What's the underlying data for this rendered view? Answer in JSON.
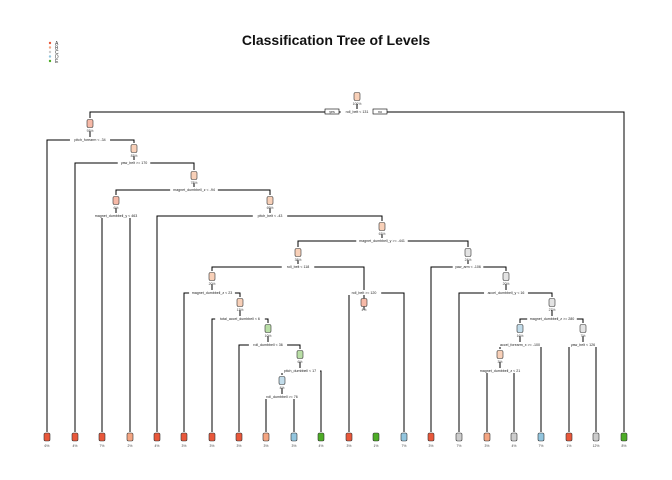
{
  "title": "Classification Tree of Levels",
  "legend": [
    {
      "label": "A",
      "color": "#e8573a"
    },
    {
      "label": "B",
      "color": "#f4a582"
    },
    {
      "label": "C",
      "color": "#cccccc"
    },
    {
      "label": "D",
      "color": "#92c5de"
    },
    {
      "label": "E",
      "color": "#4dac26"
    }
  ],
  "root_button_labels": [
    "yes",
    "no"
  ],
  "splits": [
    {
      "id": "root",
      "text": "roll_belt < 131"
    },
    {
      "id": "n2",
      "text": "pitch_forearm < -34"
    },
    {
      "id": "n4",
      "text": "yaw_belt >= 170"
    },
    {
      "id": "n5",
      "text": "magnet_dumbbell_z < -94"
    },
    {
      "id": "n6",
      "text": "magnet_dumbbell_y < 463"
    },
    {
      "id": "n7",
      "text": "pitch_belt < -43"
    },
    {
      "id": "n8",
      "text": "magnet_dumbbell_y >= -441"
    },
    {
      "id": "n9",
      "text": "roll_belt < 118"
    },
    {
      "id": "n10",
      "text": "yaw_arm < -106"
    },
    {
      "id": "n11",
      "text": "magnet_dumbbell_z < 23"
    },
    {
      "id": "n12",
      "text": "roll_belt >= 120"
    },
    {
      "id": "n13",
      "text": "accel_dumbbell_y < 16"
    },
    {
      "id": "n14",
      "text": "total_accel_dumbbell < 6"
    },
    {
      "id": "n15",
      "text": "magnet_dumbbell_z >= 280"
    },
    {
      "id": "n16",
      "text": "roll_dumbbell < 36"
    },
    {
      "id": "n17",
      "text": "accel_forearm_x >= -100"
    },
    {
      "id": "n18",
      "text": "yaw_belt < 126"
    },
    {
      "id": "n19",
      "text": "pitch_dumbbell < 17"
    },
    {
      "id": "n20",
      "text": "magnet_dumbbell_z < 21"
    },
    {
      "id": "n21",
      "text": "roll_dumbbell >= 76"
    },
    {
      "id": "n22",
      "text": "yaw_belt < 4.2"
    }
  ],
  "internal_pcts": {
    "root": "100%",
    "n2": "93%",
    "n4": "83%",
    "n5": "78%",
    "n6": "6%",
    "n7": "69%",
    "n8": "63%",
    "n9": "38%",
    "n10": "24%",
    "n11": "20%",
    "n12": "4%",
    "n13": "20%",
    "n14": "13%",
    "n15": "27%",
    "n16": "10%",
    "n17": "16%",
    "n18": "7%",
    "n19": "6%",
    "n20": "3%",
    "n21": "4%"
  },
  "leaves": [
    {
      "pct": "6%",
      "class": "A"
    },
    {
      "pct": "4%",
      "class": "A"
    },
    {
      "pct": "7%",
      "class": "A"
    },
    {
      "pct": "2%",
      "class": "B"
    },
    {
      "pct": "4%",
      "class": "A"
    },
    {
      "pct": "3%",
      "class": "A"
    },
    {
      "pct": "3%",
      "class": "A"
    },
    {
      "pct": "3%",
      "class": "A"
    },
    {
      "pct": "3%",
      "class": "B"
    },
    {
      "pct": "3%",
      "class": "D"
    },
    {
      "pct": "4%",
      "class": "E"
    },
    {
      "pct": "3%",
      "class": "A"
    },
    {
      "pct": "1%",
      "class": "E"
    },
    {
      "pct": "7%",
      "class": "D"
    },
    {
      "pct": "3%",
      "class": "A"
    },
    {
      "pct": "7%",
      "class": "C"
    },
    {
      "pct": "3%",
      "class": "B"
    },
    {
      "pct": "4%",
      "class": "C"
    },
    {
      "pct": "7%",
      "class": "D"
    },
    {
      "pct": "1%",
      "class": "A"
    },
    {
      "pct": "12%",
      "class": "C"
    },
    {
      "pct": "8%",
      "class": "E"
    }
  ]
}
